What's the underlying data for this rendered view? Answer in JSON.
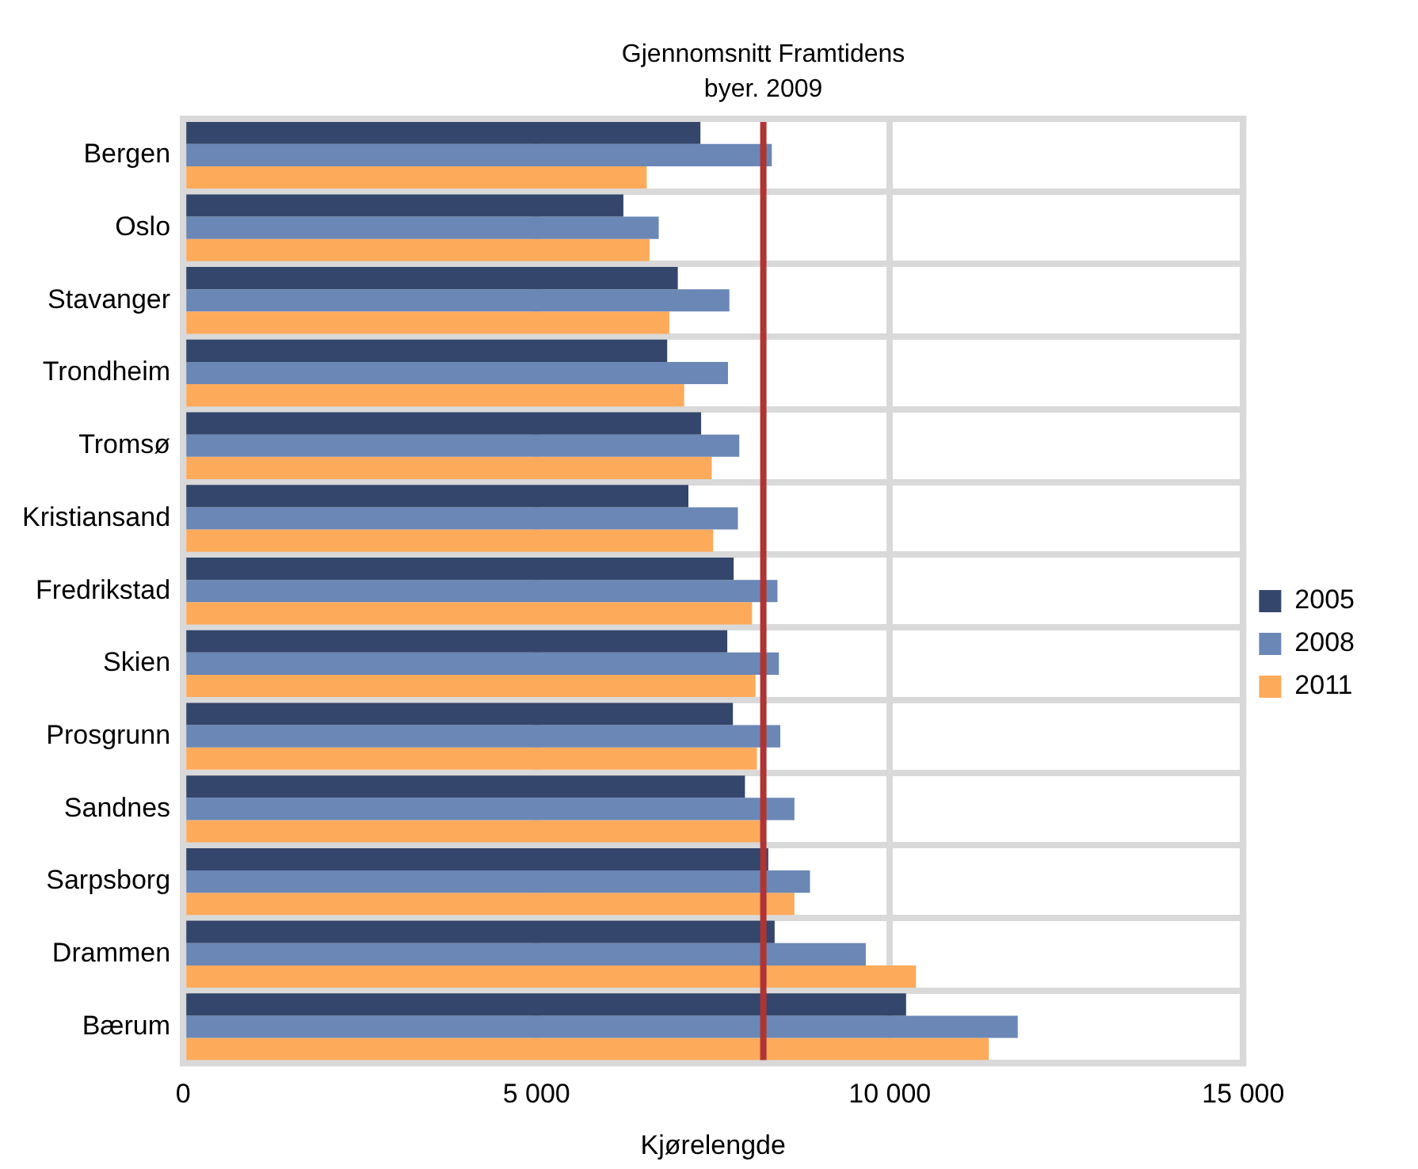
{
  "chart_data": {
    "type": "bar",
    "orientation": "horizontal",
    "xlabel": "Kjørelengde",
    "categories": [
      "Bergen",
      "Oslo",
      "Stavanger",
      "Trondheim",
      "Tromsø",
      "Kristiansand",
      "Fredrikstad",
      "Skien",
      "Prosgrunn",
      "Sandnes",
      "Sarpsborg",
      "Drammen",
      "Bærum"
    ],
    "series": [
      {
        "name": "2005",
        "color": "#34466b",
        "values": [
          7320,
          6230,
          7000,
          6850,
          7330,
          7150,
          7790,
          7700,
          7780,
          7950,
          8280,
          8370,
          10230
        ]
      },
      {
        "name": "2008",
        "color": "#6b87b6",
        "values": [
          8330,
          6730,
          7730,
          7710,
          7870,
          7850,
          8410,
          8430,
          8450,
          8650,
          8870,
          9660,
          11810
        ]
      },
      {
        "name": "2011",
        "color": "#fdaa5b",
        "values": [
          6560,
          6600,
          6880,
          7090,
          7480,
          7500,
          8050,
          8100,
          8120,
          8180,
          8650,
          10370,
          11400
        ]
      }
    ],
    "xlim": [
      0,
      15000
    ],
    "xticks": [
      0,
      {
        "value": 5000,
        "label": "5 000"
      },
      {
        "value": 10000,
        "label": "10 000"
      },
      {
        "value": 15000,
        "label": "15 000"
      }
    ],
    "ref_lines": [
      {
        "axis": "x",
        "value": 8210,
        "label": "Gjennomsnitt Framtidens byer. 2009",
        "color": "#b03434"
      }
    ],
    "grid": true,
    "legend": "right"
  }
}
